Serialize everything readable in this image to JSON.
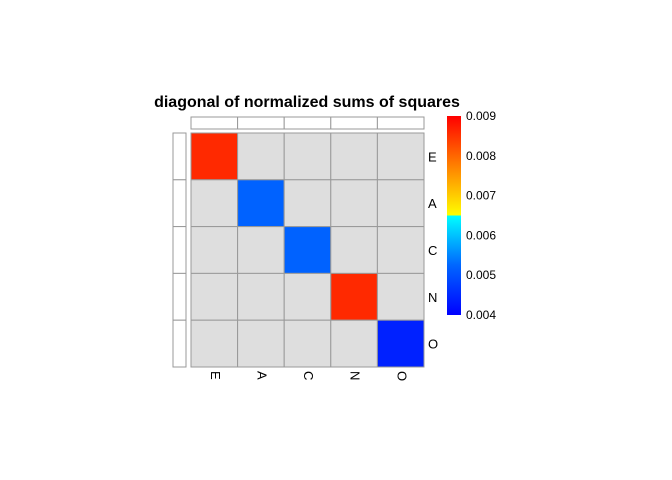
{
  "chart_data": {
    "type": "heatmap",
    "title": "diagonal of normalized sums of squares",
    "rows": [
      "E",
      "A",
      "C",
      "N",
      "O"
    ],
    "columns": [
      "E",
      "A",
      "C",
      "N",
      "O"
    ],
    "values": [
      [
        0.0086,
        null,
        null,
        null,
        null
      ],
      [
        null,
        0.0052,
        null,
        null,
        null
      ],
      [
        null,
        null,
        0.0052,
        null,
        null
      ],
      [
        null,
        null,
        null,
        0.0086,
        null
      ],
      [
        null,
        null,
        null,
        null,
        0.0044
      ]
    ],
    "off_diagonal_color": "#dedede",
    "grid_color": "#999999",
    "colorbar": {
      "min": 0.004,
      "max": 0.009,
      "ticks": [
        "0.009",
        "0.008",
        "0.007",
        "0.006",
        "0.005",
        "0.004"
      ],
      "colors": [
        "#0000ff",
        "#0066ff",
        "#00ffff",
        "#ffff00",
        "#ff8000",
        "#ff0000"
      ]
    }
  }
}
